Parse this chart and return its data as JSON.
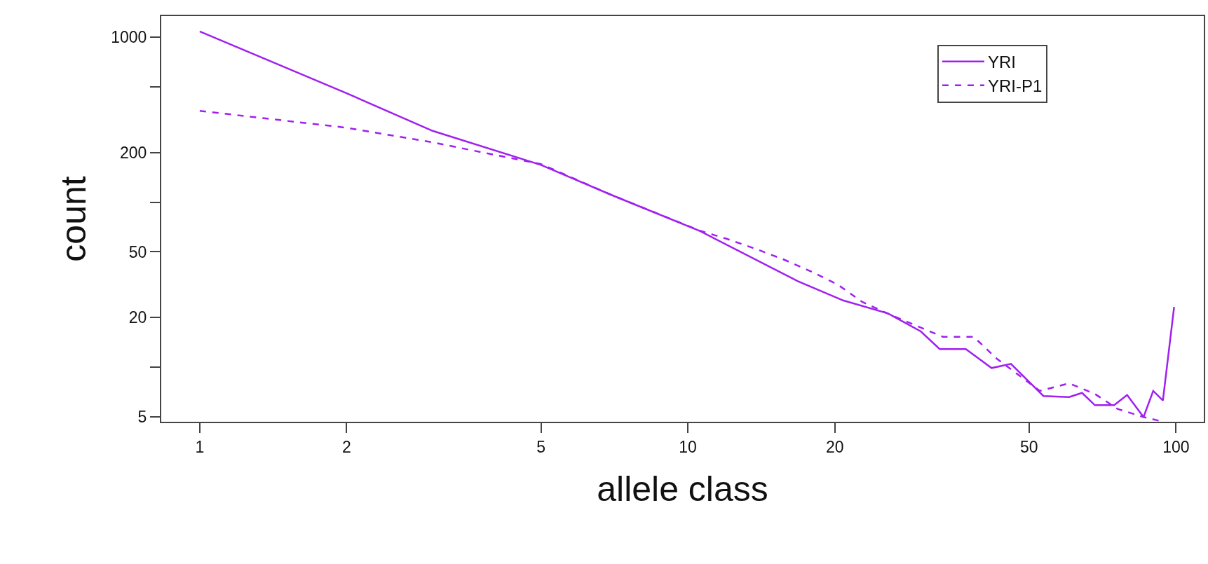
{
  "chart_data": {
    "type": "line",
    "xlabel": "allele class",
    "ylabel": "count",
    "log": "xy",
    "legend": "top right",
    "marker": "none",
    "xlim": [
      0.834,
      114
    ],
    "ylim": [
      4.68,
      1337
    ],
    "xticks": [
      1,
      2,
      5,
      10,
      20,
      50,
      100
    ],
    "yticks": [
      5,
      {
        "value": 10,
        "label": null
      },
      20,
      50,
      {
        "value": 100,
        "label": null
      },
      200,
      {
        "value": 500,
        "label": null
      },
      1000
    ],
    "series": [
      {
        "name": "YRI",
        "color": "#a020f0",
        "line_style": "solid",
        "x": [
          1,
          2,
          3,
          5,
          7,
          10.6,
          16.8,
          20.8,
          25.7,
          30,
          32.8,
          37.1,
          41.9,
          45.9,
          53.5,
          60.4,
          64.2,
          68.2,
          74.7,
          79.4,
          85.8,
          89.8,
          94,
          99.1
        ],
        "values": [
          1080,
          456,
          270,
          168,
          110,
          66.7,
          33.2,
          25.4,
          21.2,
          16.5,
          12.9,
          12.9,
          9.9,
          10.5,
          6.7,
          6.6,
          7.0,
          5.9,
          5.9,
          6.8,
          5.0,
          7.2,
          6.3,
          23.2
        ]
      },
      {
        "name": "YRI-P1",
        "color": "#a020f0",
        "line_style": "dashed",
        "x": [
          1,
          2,
          3,
          5,
          7,
          10.6,
          12,
          13.8,
          15.7,
          17.9,
          20.3,
          22.8,
          26.1,
          33.3,
          38.5,
          42.9,
          52.6,
          60.4,
          68.2,
          75.9,
          85.8,
          92.5
        ],
        "values": [
          357,
          282,
          230,
          170,
          110,
          67,
          60,
          52,
          45,
          38,
          31.6,
          24.8,
          20.7,
          15.3,
          15.3,
          11.3,
          7.2,
          8.0,
          6.9,
          5.6,
          5.0,
          4.74
        ]
      }
    ]
  }
}
